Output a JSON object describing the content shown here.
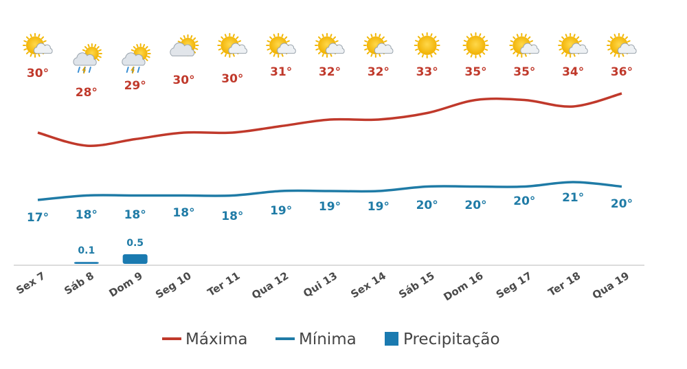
{
  "chart_data": {
    "type": "line",
    "categories": [
      "Sex 7",
      "Sáb 8",
      "Dom 9",
      "Seg 10",
      "Ter 11",
      "Qua 12",
      "Qui 13",
      "Sex 14",
      "Sáb 15",
      "Dom 16",
      "Seg 17",
      "Ter 18",
      "Qua 19"
    ],
    "icons": [
      "partly-sunny",
      "rain-storm",
      "rain-storm",
      "cloudy-sun",
      "partly-sunny",
      "partly-sunny",
      "partly-sunny",
      "partly-sunny",
      "sunny",
      "sunny",
      "partly-sunny",
      "partly-sunny",
      "partly-sunny"
    ],
    "series": [
      {
        "name": "Máxima",
        "color": "#c0392b",
        "values": [
          30,
          28,
          29,
          30,
          30,
          31,
          32,
          32,
          33,
          35,
          35,
          34,
          36
        ],
        "labels": [
          "30°",
          "28°",
          "29°",
          "30°",
          "30°",
          "31°",
          "32°",
          "32°",
          "33°",
          "35°",
          "35°",
          "34°",
          "36°"
        ]
      },
      {
        "name": "Mínima",
        "color": "#1f7ba6",
        "values": [
          17,
          18,
          18,
          18,
          18,
          19,
          19,
          19,
          20,
          20,
          20,
          21,
          20
        ],
        "labels": [
          "17°",
          "18°",
          "18°",
          "18°",
          "18°",
          "19°",
          "19°",
          "19°",
          "20°",
          "20°",
          "20°",
          "21°",
          "20°"
        ]
      },
      {
        "name": "Precipitação",
        "color": "#1a7ab0",
        "type": "bar",
        "values": [
          0,
          0.1,
          0.5,
          0,
          0,
          0,
          0,
          0,
          0,
          0,
          0,
          0,
          0
        ],
        "labels": [
          "",
          "0.1",
          "0.5",
          "",
          "",
          "",
          "",
          "",
          "",
          "",
          "",
          "",
          ""
        ]
      }
    ],
    "legend_position": "bottom-center",
    "grid": false
  }
}
